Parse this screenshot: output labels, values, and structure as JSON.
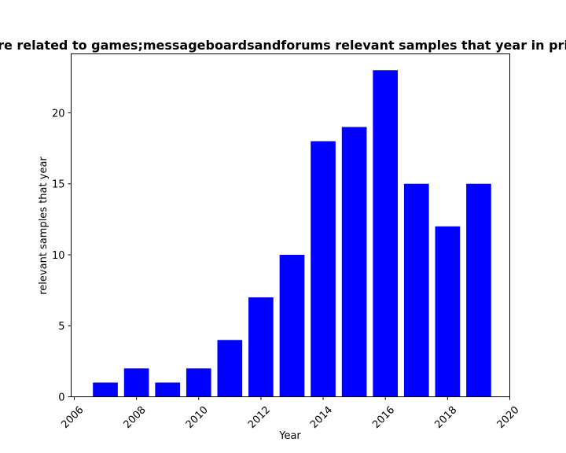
{
  "chart_data": {
    "type": "bar",
    "title": "re related to games;messageboardsandforums relevant samples that year in pri",
    "xlabel": "Year",
    "ylabel": "relevant samples that year",
    "x": [
      2007,
      2008,
      2009,
      2010,
      2011,
      2012,
      2013,
      2014,
      2015,
      2016,
      2017,
      2018,
      2019
    ],
    "values": [
      1,
      2,
      1,
      2,
      4,
      7,
      10,
      18,
      19,
      23,
      15,
      12,
      15
    ],
    "xlim": [
      2005.9,
      2020.0
    ],
    "ylim": [
      0,
      24.15
    ],
    "xticks": [
      2006,
      2008,
      2010,
      2012,
      2014,
      2016,
      2018,
      2020
    ],
    "yticks": [
      0,
      5,
      10,
      15,
      20
    ],
    "bar_color": "#0000ff",
    "grid": false
  }
}
